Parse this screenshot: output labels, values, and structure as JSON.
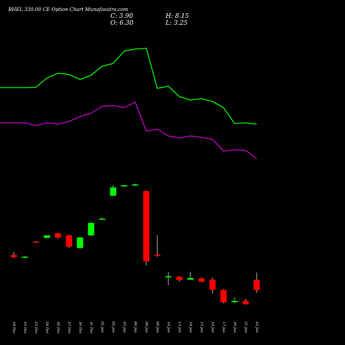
{
  "title": "BHEL 330.00 CE Option Chart Munafasutra.com",
  "ohlc": {
    "close_label": "C: 3.90",
    "high_label": "H: 8.15",
    "open_label": "O: 6.30",
    "low_label": "L: 3.25"
  },
  "chart_data": {
    "type": "candlestick",
    "title": "BHEL 330.00 CE Option Chart Munafasutra.com",
    "up_color": "#00ff00",
    "down_color": "#ff0000",
    "categories": [
      "18 Dec",
      "19 Dec",
      "23 Dec",
      "24 Dec",
      "26 Dec",
      "27 Dec",
      "30 Dec",
      "31 Dec",
      "01 Jan",
      "02 Jan",
      "03 Jan",
      "06 Jan",
      "08 Jan",
      "09 Jan",
      "10 Jan",
      "13 Jan",
      "14 Jan",
      "15 Jan",
      "16 Jan",
      "17 Jan",
      "20 Jan",
      "21 Jan",
      "22 Jan"
    ],
    "candles": [
      {
        "open": 12.3,
        "high": 13.0,
        "low": 11.6,
        "close": 11.8
      },
      {
        "open": 11.7,
        "high": 12.0,
        "low": 11.5,
        "close": 11.9
      },
      {
        "open": 15.5,
        "high": 15.7,
        "low": 15.3,
        "close": 15.4
      },
      {
        "open": 16.4,
        "high": 17.0,
        "low": 16.3,
        "close": 17.0
      },
      {
        "open": 17.5,
        "high": 17.6,
        "low": 16.2,
        "close": 16.5
      },
      {
        "open": 17.0,
        "high": 17.2,
        "low": 14.0,
        "close": 14.3
      },
      {
        "open": 14.0,
        "high": 16.6,
        "low": 13.8,
        "close": 16.5
      },
      {
        "open": 17.0,
        "high": 20.2,
        "low": 16.8,
        "close": 20.0
      },
      {
        "open": 21.0,
        "high": 21.3,
        "low": 20.8,
        "close": 21.0
      },
      {
        "open": 26.5,
        "high": 29.0,
        "low": 26.4,
        "close": 28.5
      },
      {
        "open": 28.9,
        "high": 29.1,
        "low": 28.6,
        "close": 29.0
      },
      {
        "open": 29.1,
        "high": 29.4,
        "low": 28.9,
        "close": 29.2
      },
      {
        "open": 27.6,
        "high": 27.8,
        "low": 9.8,
        "close": 10.8
      },
      {
        "open": 12.4,
        "high": 17.0,
        "low": 11.9,
        "close": 12.3
      },
      {
        "open": 7.1,
        "high": 8.2,
        "low": 5.1,
        "close": 7.2
      },
      {
        "open": 7.1,
        "high": 7.3,
        "low": 5.9,
        "close": 6.3
      },
      {
        "open": 6.4,
        "high": 8.3,
        "low": 6.3,
        "close": 6.8
      },
      {
        "open": 6.7,
        "high": 6.9,
        "low": 5.8,
        "close": 5.9
      },
      {
        "open": 6.4,
        "high": 6.9,
        "low": 3.1,
        "close": 4.0
      },
      {
        "open": 3.9,
        "high": 4.1,
        "low": 0.7,
        "close": 1.0
      },
      {
        "open": 1.0,
        "high": 2.1,
        "low": 0.8,
        "close": 1.3
      },
      {
        "open": 1.3,
        "high": 1.8,
        "low": 0.4,
        "close": 0.5
      },
      {
        "open": 6.3,
        "high": 8.15,
        "low": 3.25,
        "close": 3.9
      }
    ],
    "upper_line": [
      127,
      127,
      126.5,
      113,
      106,
      108,
      115,
      109,
      96,
      92,
      74,
      71,
      70,
      128,
      125,
      140,
      145,
      143,
      147,
      156,
      179,
      178,
      180
    ],
    "lower_line": [
      178,
      178,
      182,
      178,
      180,
      176,
      169,
      164,
      154,
      153,
      156,
      148,
      190,
      187,
      197,
      200,
      197,
      199,
      202,
      219,
      217,
      218,
      230
    ]
  }
}
